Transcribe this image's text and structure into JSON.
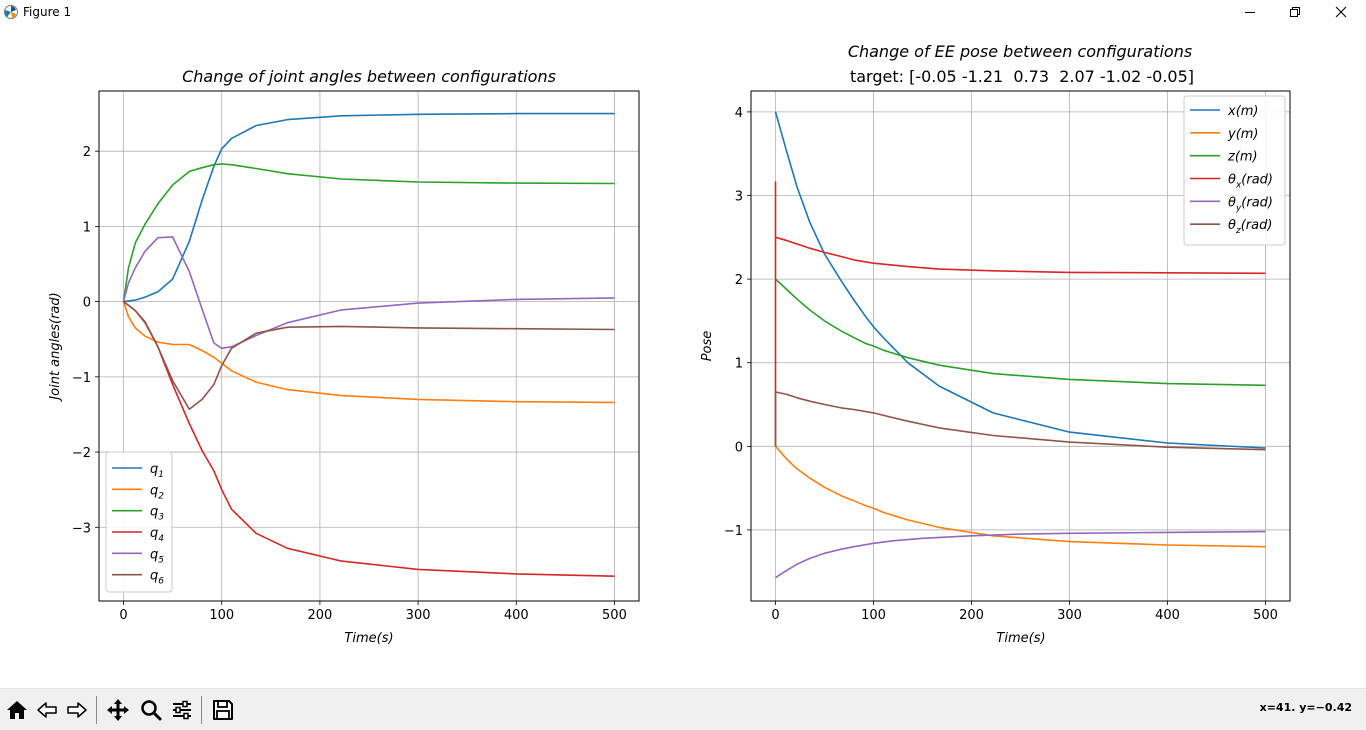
{
  "window": {
    "title": "Figure 1"
  },
  "status": {
    "coords": "x=41. y=−0.42"
  },
  "toolbar": {
    "buttons": [
      "home-icon",
      "back-icon",
      "forward-icon",
      "pan-icon",
      "zoom-icon",
      "configure-subplots-icon",
      "save-icon"
    ]
  },
  "colors": {
    "c0": "#1f77b4",
    "c1": "#ff7f0e",
    "c2": "#2ca02c",
    "c3": "#d62728",
    "c4": "#9467bd",
    "c5": "#8c564b"
  },
  "chart_data": [
    {
      "type": "line",
      "title": "Change of joint angles between configurations",
      "xlabel": "Time(s)",
      "ylabel": "Joint angles(rad)",
      "xlim": [
        -25,
        525
      ],
      "ylim": [
        -3.98,
        2.8
      ],
      "xticks": [
        0,
        100,
        200,
        300,
        400,
        500
      ],
      "yticks": [
        -3,
        -2,
        -1,
        0,
        1,
        2
      ],
      "grid": true,
      "legend_position": "lower-left",
      "series": [
        {
          "name": "q1",
          "label_main": "q",
          "label_sub": "1",
          "color": "#1f77b4",
          "x": [
            0,
            12,
            22,
            35,
            50,
            67,
            80,
            92,
            100,
            110,
            135,
            167,
            222,
            300,
            400,
            500
          ],
          "y": [
            0,
            0.02,
            0.06,
            0.13,
            0.3,
            0.8,
            1.35,
            1.8,
            2.03,
            2.17,
            2.34,
            2.42,
            2.47,
            2.49,
            2.5,
            2.5
          ]
        },
        {
          "name": "q2",
          "label_main": "q",
          "label_sub": "2",
          "color": "#ff7f0e",
          "x": [
            0,
            5,
            12,
            22,
            35,
            50,
            67,
            80,
            92,
            100,
            110,
            135,
            167,
            222,
            300,
            400,
            500
          ],
          "y": [
            0,
            -0.2,
            -0.35,
            -0.46,
            -0.54,
            -0.57,
            -0.57,
            -0.65,
            -0.74,
            -0.82,
            -0.92,
            -1.07,
            -1.17,
            -1.25,
            -1.3,
            -1.33,
            -1.34
          ]
        },
        {
          "name": "q3",
          "label_main": "q",
          "label_sub": "3",
          "color": "#2ca02c",
          "x": [
            0,
            5,
            12,
            22,
            35,
            50,
            67,
            80,
            92,
            100,
            110,
            135,
            167,
            222,
            300,
            400,
            500
          ],
          "y": [
            0,
            0.45,
            0.78,
            1.03,
            1.3,
            1.55,
            1.73,
            1.78,
            1.82,
            1.83,
            1.82,
            1.77,
            1.7,
            1.63,
            1.59,
            1.575,
            1.57
          ]
        },
        {
          "name": "q4",
          "label_main": "q",
          "label_sub": "4",
          "color": "#d62728",
          "x": [
            0,
            5,
            12,
            22,
            35,
            50,
            67,
            80,
            92,
            100,
            110,
            135,
            167,
            222,
            300,
            400,
            500
          ],
          "y": [
            0,
            -0.05,
            -0.12,
            -0.28,
            -0.6,
            -1.1,
            -1.62,
            -1.98,
            -2.25,
            -2.5,
            -2.76,
            -3.08,
            -3.28,
            -3.45,
            -3.56,
            -3.62,
            -3.65
          ]
        },
        {
          "name": "q5",
          "label_main": "q",
          "label_sub": "5",
          "color": "#9467bd",
          "x": [
            0,
            5,
            12,
            22,
            35,
            50,
            67,
            80,
            92,
            100,
            110,
            135,
            167,
            222,
            300,
            400,
            500
          ],
          "y": [
            0,
            0.25,
            0.45,
            0.67,
            0.85,
            0.86,
            0.4,
            -0.1,
            -0.55,
            -0.62,
            -0.6,
            -0.45,
            -0.28,
            -0.11,
            -0.02,
            0.03,
            0.05
          ]
        },
        {
          "name": "q6",
          "label_main": "q",
          "label_sub": "6",
          "color": "#8c564b",
          "x": [
            0,
            5,
            12,
            22,
            35,
            50,
            67,
            80,
            92,
            100,
            110,
            135,
            167,
            222,
            300,
            400,
            500
          ],
          "y": [
            0,
            -0.05,
            -0.12,
            -0.27,
            -0.6,
            -1.05,
            -1.43,
            -1.3,
            -1.1,
            -0.85,
            -0.62,
            -0.42,
            -0.34,
            -0.33,
            -0.35,
            -0.36,
            -0.37
          ]
        }
      ]
    },
    {
      "type": "line",
      "title": "Change of EE pose between configurations",
      "subtitle": "target: [-0.05 -1.21  0.73  2.07 -1.02 -0.05]",
      "xlabel": "Time(s)",
      "ylabel": "Pose",
      "xlim": [
        -25,
        525
      ],
      "ylim": [
        -1.85,
        4.25
      ],
      "xticks": [
        0,
        100,
        200,
        300,
        400,
        500
      ],
      "yticks": [
        -1,
        0,
        1,
        2,
        3,
        4
      ],
      "grid": true,
      "legend_position": "upper-right",
      "series": [
        {
          "name": "x(m)",
          "label_main": "x(m)",
          "label_sub": "",
          "label_tail": "",
          "color": "#1f77b4",
          "x": [
            0,
            12,
            22,
            35,
            50,
            67,
            80,
            92,
            100,
            110,
            135,
            167,
            222,
            300,
            400,
            500
          ],
          "y": [
            4.0,
            3.5,
            3.1,
            2.68,
            2.3,
            1.98,
            1.75,
            1.55,
            1.43,
            1.3,
            1.0,
            0.72,
            0.4,
            0.17,
            0.04,
            -0.02
          ]
        },
        {
          "name": "y(m)",
          "label_main": "y(m)",
          "label_sub": "",
          "label_tail": "",
          "color": "#ff7f0e",
          "x": [
            0,
            12,
            22,
            35,
            50,
            67,
            80,
            92,
            100,
            110,
            135,
            167,
            222,
            300,
            400,
            500
          ],
          "y": [
            0,
            -0.16,
            -0.27,
            -0.38,
            -0.49,
            -0.59,
            -0.65,
            -0.71,
            -0.74,
            -0.79,
            -0.88,
            -0.97,
            -1.07,
            -1.14,
            -1.18,
            -1.2
          ]
        },
        {
          "name": "z(m)",
          "label_main": "z(m)",
          "label_sub": "",
          "label_tail": "",
          "color": "#2ca02c",
          "x": [
            0,
            12,
            22,
            35,
            50,
            67,
            80,
            92,
            100,
            110,
            135,
            167,
            222,
            300,
            400,
            500
          ],
          "y": [
            2.0,
            1.87,
            1.76,
            1.63,
            1.5,
            1.38,
            1.3,
            1.23,
            1.2,
            1.15,
            1.06,
            0.97,
            0.87,
            0.8,
            0.75,
            0.73
          ]
        },
        {
          "name": "θx(rad)",
          "label_main": "θ",
          "label_sub": "x",
          "label_tail": "(rad)",
          "color": "#d62728",
          "x": [
            0,
            0,
            0,
            12,
            22,
            35,
            50,
            67,
            80,
            100,
            135,
            167,
            222,
            300,
            400,
            500
          ],
          "y": [
            0,
            3.16,
            2.5,
            2.46,
            2.42,
            2.37,
            2.32,
            2.27,
            2.23,
            2.19,
            2.15,
            2.12,
            2.1,
            2.08,
            2.075,
            2.07
          ]
        },
        {
          "name": "θy(rad)",
          "label_main": "θ",
          "label_sub": "y",
          "label_tail": "(rad)",
          "color": "#9467bd",
          "x": [
            0,
            12,
            22,
            35,
            50,
            67,
            80,
            100,
            120,
            150,
            200,
            250,
            300,
            400,
            500
          ],
          "y": [
            -1.57,
            -1.48,
            -1.41,
            -1.34,
            -1.28,
            -1.23,
            -1.2,
            -1.16,
            -1.13,
            -1.1,
            -1.07,
            -1.05,
            -1.04,
            -1.03,
            -1.02
          ]
        },
        {
          "name": "θz(rad)",
          "label_main": "θ",
          "label_sub": "z",
          "label_tail": "(rad)",
          "color": "#8c564b",
          "x": [
            0,
            0,
            12,
            22,
            35,
            50,
            67,
            80,
            100,
            135,
            167,
            222,
            300,
            400,
            500
          ],
          "y": [
            0,
            0.65,
            0.62,
            0.58,
            0.54,
            0.5,
            0.46,
            0.44,
            0.4,
            0.3,
            0.22,
            0.13,
            0.05,
            -0.01,
            -0.04
          ]
        }
      ]
    }
  ]
}
